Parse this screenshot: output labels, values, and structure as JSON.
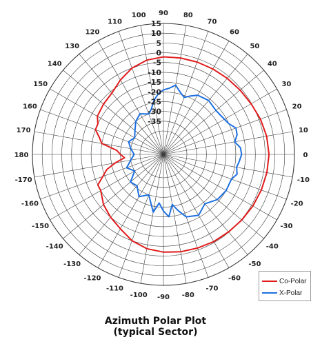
{
  "caption": {
    "line1": "Azimuth Polar Plot",
    "line2": "(typical Sector)"
  },
  "legend": {
    "co_polar": "Co-Polar",
    "x_polar": "X-Polar"
  },
  "colors": {
    "co_polar": "#e01b1b",
    "x_polar": "#1c6fe0",
    "grid": "#3a3a3a"
  },
  "chart_data": {
    "type": "polar",
    "title": "Azimuth Polar Plot (typical Sector)",
    "angle_unit": "degrees",
    "angle_zero": "right",
    "angle_direction": "counterclockwise",
    "angular_ticks": [
      0,
      10,
      20,
      30,
      40,
      50,
      60,
      70,
      80,
      90,
      100,
      110,
      120,
      130,
      140,
      150,
      160,
      170,
      180,
      -170,
      -160,
      -150,
      -140,
      -130,
      -120,
      -110,
      -100,
      -90,
      -80,
      -70,
      -60,
      -50,
      -40,
      -30,
      -20,
      -10
    ],
    "angular_tick_labels": [
      "0",
      "10",
      "20",
      "30",
      "40",
      "50",
      "60",
      "70",
      "80",
      "90",
      "100",
      "110",
      "120",
      "130",
      "140",
      "150",
      "160",
      "170",
      "180",
      "-170",
      "-160",
      "-150",
      "-140",
      "-130",
      "-120",
      "-110",
      "-100",
      "-90",
      "-80",
      "-70",
      "-60",
      "-50",
      "-40",
      "-30",
      "-20",
      "-10"
    ],
    "radial_range": [
      -40,
      15
    ],
    "radial_ticks": [
      15,
      10,
      5,
      0,
      -5,
      -10,
      -15,
      -20,
      -25,
      -30,
      -35
    ],
    "radial_tick_labels": [
      "15",
      "10",
      "5",
      "0",
      "-5",
      "-10",
      "-15",
      "-20",
      "-25",
      "-30",
      "-35"
    ],
    "grid": true,
    "legend_position": "bottom-right",
    "series": [
      {
        "name": "Co-Polar",
        "color": "#e01b1b",
        "points": [
          [
            0,
            2
          ],
          [
            10,
            1.6
          ],
          [
            20,
            0.8
          ],
          [
            30,
            -0.2
          ],
          [
            40,
            -0.8
          ],
          [
            50,
            -1.2
          ],
          [
            60,
            -1.5
          ],
          [
            70,
            -1.7
          ],
          [
            80,
            -1.9
          ],
          [
            90,
            -2.1
          ],
          [
            100,
            -3
          ],
          [
            110,
            -5
          ],
          [
            120,
            -8
          ],
          [
            130,
            -11
          ],
          [
            140,
            -12
          ],
          [
            150,
            -13
          ],
          [
            155,
            -15
          ],
          [
            160,
            -15
          ],
          [
            165,
            -18
          ],
          [
            170,
            -20
          ],
          [
            175,
            -28
          ],
          [
            180,
            -30
          ],
          [
            -175,
            -32
          ],
          [
            -170,
            -27
          ],
          [
            -165,
            -22
          ],
          [
            -160,
            -19
          ],
          [
            -155,
            -15
          ],
          [
            -150,
            -15
          ],
          [
            -140,
            -12
          ],
          [
            -130,
            -10
          ],
          [
            -120,
            -8
          ],
          [
            -110,
            -5
          ],
          [
            -100,
            -3
          ],
          [
            -90,
            -2
          ],
          [
            -80,
            -1.4
          ],
          [
            -70,
            -1
          ],
          [
            -60,
            -0.5
          ],
          [
            -50,
            -0.2
          ],
          [
            -40,
            0.3
          ],
          [
            -30,
            0.8
          ],
          [
            -20,
            1.3
          ],
          [
            -10,
            1.7
          ],
          [
            0,
            2
          ]
        ]
      },
      {
        "name": "X-Polar",
        "color": "#1c6fe0",
        "points": [
          [
            0,
            -12
          ],
          [
            5,
            -12.5
          ],
          [
            10,
            -15
          ],
          [
            15,
            -13
          ],
          [
            20,
            -12.5
          ],
          [
            25,
            -15
          ],
          [
            30,
            -16
          ],
          [
            40,
            -17
          ],
          [
            50,
            -16
          ],
          [
            60,
            -17
          ],
          [
            65,
            -19
          ],
          [
            70,
            -21
          ],
          [
            75,
            -19
          ],
          [
            80,
            -16
          ],
          [
            85,
            -18
          ],
          [
            90,
            -19
          ],
          [
            95,
            -21
          ],
          [
            100,
            -24
          ],
          [
            105,
            -28
          ],
          [
            110,
            -30
          ],
          [
            120,
            -28
          ],
          [
            130,
            -30
          ],
          [
            140,
            -33
          ],
          [
            150,
            -35
          ],
          [
            160,
            -33
          ],
          [
            170,
            -35
          ],
          [
            180,
            -37
          ],
          [
            -170,
            -35
          ],
          [
            -160,
            -32
          ],
          [
            -150,
            -35
          ],
          [
            -140,
            -30
          ],
          [
            -130,
            -31
          ],
          [
            -120,
            -27
          ],
          [
            -110,
            -30
          ],
          [
            -100,
            -22
          ],
          [
            -95,
            -27
          ],
          [
            -90,
            -23
          ],
          [
            -85,
            -20
          ],
          [
            -80,
            -26
          ],
          [
            -75,
            -22
          ],
          [
            -70,
            -18
          ],
          [
            -60,
            -16
          ],
          [
            -50,
            -19
          ],
          [
            -40,
            -16
          ],
          [
            -30,
            -15
          ],
          [
            -20,
            -15
          ],
          [
            -15,
            -13
          ],
          [
            -10,
            -14
          ],
          [
            -5,
            -13
          ],
          [
            0,
            -12
          ]
        ]
      }
    ]
  }
}
